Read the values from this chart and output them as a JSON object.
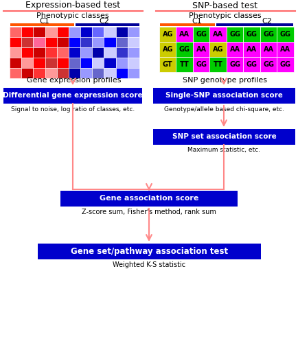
{
  "title_left": "Expression-based test",
  "title_right": "SNP-based test",
  "phenotypic_label": "Phenotypic classes",
  "c1_label": "C1",
  "c2_label": "C2",
  "expr_label": "Gene expression profiles",
  "snp_label": "SNP genotype profiles",
  "box1_text": "Differential gene expression score",
  "box1_sub": "Signal to noise, log ratio of classes, etc.",
  "box2_text": "Single-SNP association score",
  "box2_sub": "Genotype/allele based chi-square, etc.",
  "box3_text": "SNP set association score",
  "box3_sub": "Maximum statistic, etc.",
  "box4_text": "Gene association score",
  "box4_sub": "Z-score sum, Fisher's method, rank sum",
  "box5_text": "Gene set/pathway association test",
  "box5_sub": "Weighted K-S statistic",
  "box_bg": "#0000CC",
  "box_text_color": "#FFFFFF",
  "arrow_color": "#FF8888",
  "title_color": "#000000",
  "snp_data": [
    [
      [
        "AG",
        "#CCCC00"
      ],
      [
        "AA",
        "#FF00FF"
      ],
      [
        "GG",
        "#00CC00"
      ],
      [
        "AA",
        "#FF00FF"
      ],
      [
        "GG",
        "#00CC00"
      ],
      [
        "GG",
        "#00CC00"
      ],
      [
        "GG",
        "#00CC00"
      ],
      [
        "GG",
        "#00CC00"
      ]
    ],
    [
      [
        "AG",
        "#CCCC00"
      ],
      [
        "GG",
        "#00CC00"
      ],
      [
        "AA",
        "#FF00FF"
      ],
      [
        "AG",
        "#CCCC00"
      ],
      [
        "AA",
        "#FF00FF"
      ],
      [
        "AA",
        "#FF00FF"
      ],
      [
        "AA",
        "#FF00FF"
      ],
      [
        "AA",
        "#FF00FF"
      ]
    ],
    [
      [
        "GT",
        "#CCCC00"
      ],
      [
        "TT",
        "#00CC00"
      ],
      [
        "GG",
        "#FF00FF"
      ],
      [
        "TT",
        "#00CC00"
      ],
      [
        "GG",
        "#FF00FF"
      ],
      [
        "GG",
        "#FF00FF"
      ],
      [
        "GG",
        "#FF00FF"
      ],
      [
        "GG",
        "#FF00FF"
      ]
    ]
  ],
  "expr_colors": [
    [
      "#FF6666",
      "#FF0000",
      "#CC0000",
      "#FF9999",
      "#FF0000",
      "#9999FF",
      "#0000CC",
      "#6666FF",
      "#CCCCFF",
      "#0000AA",
      "#9999FF"
    ],
    [
      "#FF0000",
      "#CC3333",
      "#FF6699",
      "#FF0000",
      "#CC0000",
      "#0000FF",
      "#3333CC",
      "#9999FF",
      "#0000FF",
      "#6666CC",
      "#CCCCFF"
    ],
    [
      "#FF9999",
      "#FF0000",
      "#CC0000",
      "#FF3333",
      "#FF6666",
      "#0000CC",
      "#9999FF",
      "#0000AA",
      "#CCCCFF",
      "#3333CC",
      "#9999FF"
    ],
    [
      "#CC0000",
      "#FF9999",
      "#FF0000",
      "#CC3333",
      "#FF0000",
      "#6666CC",
      "#0000FF",
      "#CCCCFF",
      "#0000CC",
      "#9999FF",
      "#CCCCFF"
    ],
    [
      "#FF6666",
      "#CC0000",
      "#FF3333",
      "#FF9999",
      "#CC3333",
      "#0000AA",
      "#9999FF",
      "#6666CC",
      "#CCCCFF",
      "#0000FF",
      "#9999FF"
    ]
  ],
  "background_color": "#FFFFFF"
}
